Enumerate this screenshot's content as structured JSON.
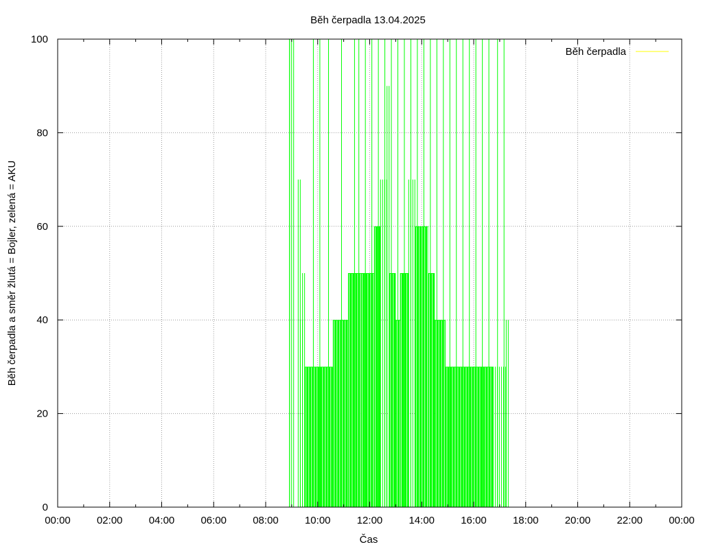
{
  "chart_data": {
    "type": "bar",
    "title": "Běh čerpadla 13.04.2025",
    "xlabel": "Čas",
    "ylabel": "Běh čerpadla a směr žlutá = Bojler, zelená = AKU",
    "xlim": [
      0,
      24
    ],
    "ylim": [
      0,
      100
    ],
    "x_ticks": [
      "00:00",
      "02:00",
      "04:00",
      "06:00",
      "08:00",
      "10:00",
      "12:00",
      "14:00",
      "16:00",
      "18:00",
      "20:00",
      "22:00",
      "00:00"
    ],
    "y_ticks": [
      "0",
      "20",
      "40",
      "60",
      "80",
      "100"
    ],
    "grid": true,
    "legend": {
      "position": "top-right",
      "entries": [
        {
          "label": "Běh čerpadla",
          "color": "#ffff00"
        }
      ]
    },
    "series": [
      {
        "name": "Běh čerpadla",
        "color": "#00ff00",
        "segments": [
          {
            "from": "08:55",
            "to": "09:05",
            "value": 100,
            "sparse": true
          },
          {
            "from": "09:05",
            "to": "09:15",
            "value": 0
          },
          {
            "from": "09:15",
            "to": "09:20",
            "value": 70,
            "sparse": true
          },
          {
            "from": "09:20",
            "to": "09:25",
            "value": 40,
            "sparse": true
          },
          {
            "from": "09:25",
            "to": "09:30",
            "value": 50,
            "sparse": true
          },
          {
            "from": "09:30",
            "to": "10:35",
            "value": 30
          },
          {
            "from": "10:35",
            "to": "11:10",
            "value": 40
          },
          {
            "from": "11:10",
            "to": "11:40",
            "value": 50
          },
          {
            "from": "11:40",
            "to": "12:10",
            "value": 50
          },
          {
            "from": "12:10",
            "to": "12:25",
            "value": 60
          },
          {
            "from": "12:25",
            "to": "12:40",
            "value": 70,
            "sparse": true
          },
          {
            "from": "12:40",
            "to": "12:45",
            "value": 90,
            "sparse": true
          },
          {
            "from": "12:45",
            "to": "13:00",
            "value": 50
          },
          {
            "from": "13:00",
            "to": "13:10",
            "value": 40
          },
          {
            "from": "13:10",
            "to": "13:30",
            "value": 50
          },
          {
            "from": "13:30",
            "to": "13:45",
            "value": 70,
            "sparse": true
          },
          {
            "from": "13:45",
            "to": "14:15",
            "value": 60
          },
          {
            "from": "14:15",
            "to": "14:30",
            "value": 50
          },
          {
            "from": "14:30",
            "to": "14:55",
            "value": 40
          },
          {
            "from": "14:55",
            "to": "16:45",
            "value": 30
          },
          {
            "from": "16:45",
            "to": "17:15",
            "value": 30,
            "sparse": true
          },
          {
            "from": "17:15",
            "to": "17:20",
            "value": 40,
            "sparse": true
          }
        ],
        "spikes_to_100": [
          "08:55",
          "09:50",
          "10:05",
          "10:25",
          "10:55",
          "11:25",
          "11:35",
          "11:50",
          "12:05",
          "12:20",
          "12:35",
          "12:50",
          "13:05",
          "13:20",
          "13:35",
          "13:50",
          "14:05",
          "14:20",
          "14:35",
          "14:50",
          "15:05",
          "15:20",
          "15:35",
          "15:50",
          "16:05",
          "16:20",
          "16:35",
          "16:55",
          "17:10"
        ]
      }
    ]
  }
}
